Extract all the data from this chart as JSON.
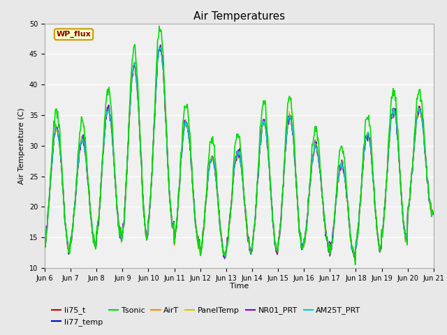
{
  "title": "Air Temperatures",
  "ylabel": "Air Temperature (C)",
  "xlabel": "Time",
  "ylim": [
    10,
    50
  ],
  "fig_bg_color": "#e8e8e8",
  "plot_bg_color": "#f0f0f0",
  "series": {
    "li75_t": {
      "color": "#cc0000",
      "lw": 1.0
    },
    "li77_temp": {
      "color": "#0000cc",
      "lw": 1.0
    },
    "Tsonic": {
      "color": "#00dd00",
      "lw": 1.2
    },
    "AirT": {
      "color": "#ff8800",
      "lw": 1.0
    },
    "PanelTemp": {
      "color": "#cccc00",
      "lw": 1.0
    },
    "NR01_PRT": {
      "color": "#8800cc",
      "lw": 1.0
    },
    "AM25T_PRT": {
      "color": "#00cccc",
      "lw": 1.0
    }
  },
  "wp_flux_label": {
    "text": "WP_flux",
    "facecolor": "#ffffcc",
    "edgecolor": "#cc9900",
    "textcolor": "#880000"
  },
  "x_tick_labels": [
    "Jun 6",
    "Jun 7",
    "Jun 8",
    "Jun 9",
    "Jun 10",
    "Jun 11",
    "Jun 12",
    "Jun 13",
    "Jun 14",
    "Jun 15",
    "Jun 16",
    "Jun 17",
    "Jun 18",
    "Jun 19",
    "Jun 20",
    "Jun 21"
  ],
  "num_days": 15,
  "pts_per_day": 48,
  "day_peaks": [
    33,
    31,
    36,
    43,
    46,
    34,
    28,
    29,
    34,
    35,
    30,
    27,
    32,
    36,
    36
  ],
  "day_troughs": [
    13,
    14,
    15,
    15,
    17,
    14,
    12,
    13,
    13,
    13,
    14,
    12,
    13,
    15,
    19
  ],
  "tsonic_extra": 3.0,
  "legend_rows": [
    [
      "li75_t",
      "li77_temp",
      "Tsonic",
      "AirT",
      "PanelTemp",
      "NR01_PRT"
    ],
    [
      "AM25T_PRT"
    ]
  ]
}
